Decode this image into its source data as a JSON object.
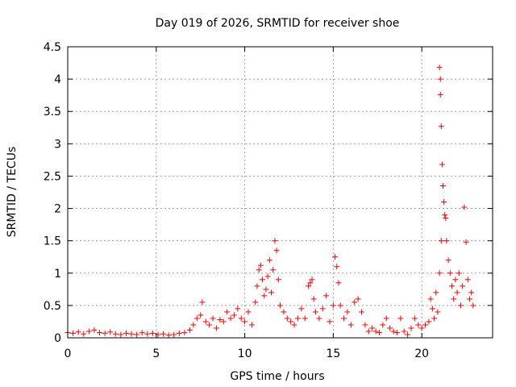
{
  "chart_data": {
    "type": "scatter",
    "title": "Day 019 of 2026, SRMTID for receiver shoe",
    "xlabel": "GPS time / hours",
    "ylabel": "SRMTID / TECUs",
    "xlim": [
      0,
      24
    ],
    "ylim": [
      0,
      4.5
    ],
    "x_ticks": [
      0,
      5,
      10,
      15,
      20
    ],
    "x_tick_labels": [
      "0",
      "5",
      "10",
      "15",
      "20"
    ],
    "y_ticks": [
      0,
      0.5,
      1,
      1.5,
      2,
      2.5,
      3,
      3.5,
      4,
      4.5
    ],
    "y_tick_labels": [
      "0",
      "0.5",
      "1",
      "1.5",
      "2",
      "2.5",
      "3",
      "3.5",
      "4",
      "4.5"
    ],
    "grid": true,
    "marker": "+",
    "series": [
      {
        "name": "SRMTID",
        "color": "#ff0000",
        "x": [
          0.0,
          0.3,
          0.6,
          0.9,
          1.2,
          1.5,
          1.8,
          2.1,
          2.4,
          2.7,
          3.0,
          3.3,
          3.6,
          3.9,
          4.2,
          4.5,
          4.8,
          5.1,
          5.4,
          5.7,
          6.0,
          6.3,
          6.6,
          6.9,
          7.1,
          7.3,
          7.5,
          7.6,
          7.8,
          8.0,
          8.2,
          8.4,
          8.6,
          8.8,
          9.0,
          9.2,
          9.4,
          9.6,
          9.8,
          10.0,
          10.2,
          10.4,
          10.6,
          10.7,
          10.8,
          10.9,
          11.0,
          11.1,
          11.2,
          11.3,
          11.4,
          11.5,
          11.6,
          11.7,
          11.8,
          11.9,
          12.0,
          12.2,
          12.4,
          12.6,
          12.8,
          13.0,
          13.2,
          13.4,
          13.6,
          13.7,
          13.8,
          13.9,
          14.0,
          14.2,
          14.4,
          14.6,
          14.8,
          15.0,
          15.1,
          15.2,
          15.3,
          15.4,
          15.6,
          15.8,
          16.0,
          16.2,
          16.4,
          16.6,
          16.8,
          17.0,
          17.2,
          17.4,
          17.6,
          17.8,
          18.0,
          18.2,
          18.4,
          18.6,
          18.8,
          19.0,
          19.2,
          19.4,
          19.6,
          19.8,
          20.0,
          20.2,
          20.4,
          20.5,
          20.6,
          20.7,
          20.8,
          20.9,
          21.0,
          21.0,
          21.05,
          21.05,
          21.1,
          21.1,
          21.15,
          21.2,
          21.25,
          21.3,
          21.35,
          21.4,
          21.5,
          21.6,
          21.7,
          21.8,
          21.9,
          22.0,
          22.1,
          22.2,
          22.3,
          22.4,
          22.5,
          22.6,
          22.7,
          22.8,
          22.9
        ],
        "y": [
          0.08,
          0.07,
          0.09,
          0.06,
          0.1,
          0.12,
          0.08,
          0.07,
          0.09,
          0.06,
          0.05,
          0.07,
          0.06,
          0.05,
          0.08,
          0.06,
          0.07,
          0.05,
          0.06,
          0.04,
          0.05,
          0.07,
          0.08,
          0.12,
          0.2,
          0.3,
          0.35,
          0.55,
          0.25,
          0.2,
          0.3,
          0.15,
          0.28,
          0.25,
          0.4,
          0.3,
          0.35,
          0.45,
          0.3,
          0.25,
          0.4,
          0.2,
          0.55,
          0.8,
          1.05,
          1.12,
          0.9,
          0.65,
          0.75,
          0.95,
          1.2,
          0.7,
          1.05,
          1.5,
          1.35,
          0.9,
          0.5,
          0.4,
          0.3,
          0.25,
          0.2,
          0.3,
          0.45,
          0.3,
          0.8,
          0.85,
          0.9,
          0.6,
          0.4,
          0.3,
          0.45,
          0.65,
          0.25,
          0.5,
          1.25,
          1.1,
          0.85,
          0.5,
          0.3,
          0.4,
          0.2,
          0.55,
          0.6,
          0.4,
          0.2,
          0.1,
          0.15,
          0.1,
          0.08,
          0.2,
          0.3,
          0.15,
          0.1,
          0.08,
          0.3,
          0.1,
          0.05,
          0.15,
          0.3,
          0.2,
          0.15,
          0.2,
          0.25,
          0.6,
          0.45,
          0.3,
          0.7,
          0.4,
          1.0,
          4.18,
          4.0,
          3.76,
          1.5,
          3.27,
          2.68,
          2.35,
          2.1,
          1.9,
          1.85,
          1.5,
          1.2,
          1.0,
          0.8,
          0.6,
          0.9,
          0.7,
          1.0,
          0.5,
          0.8,
          2.02,
          1.48,
          0.9,
          0.6,
          0.7,
          0.5
        ]
      }
    ]
  }
}
